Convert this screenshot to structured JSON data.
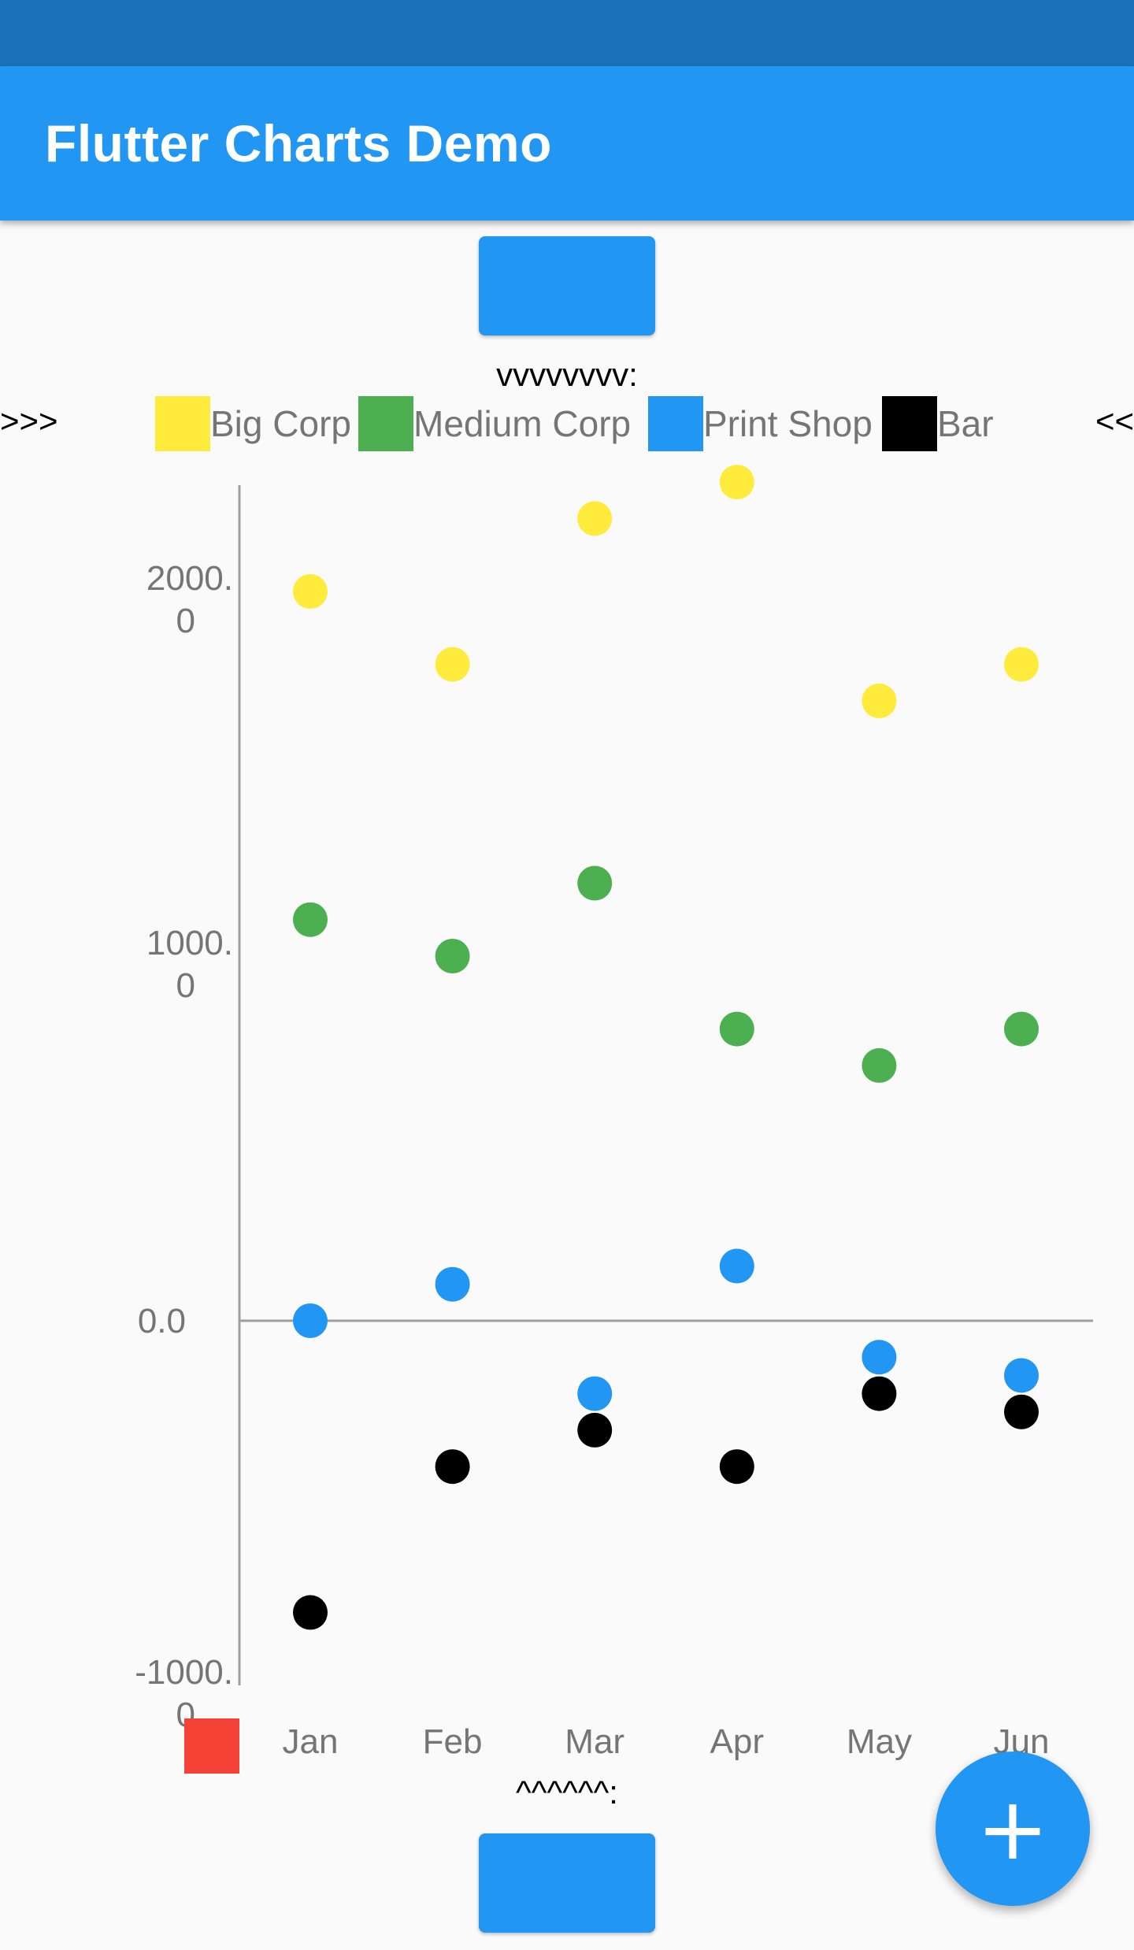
{
  "app": {
    "title": "Flutter Charts Demo"
  },
  "legend": {
    "title": "vvvvvvvv:",
    "arrow_left": ">>>",
    "arrow_right": "<<",
    "items": [
      {
        "label": "Big Corp",
        "color": "#ffeb3b"
      },
      {
        "label": "Medium Corp",
        "color": "#4caf50"
      },
      {
        "label": "Print Shop",
        "color": "#2196f3"
      },
      {
        "label": "Bar",
        "color": "#000000"
      }
    ]
  },
  "bottom_label": "^^^^^^:",
  "fab": {
    "icon": "plus-icon",
    "symbol": "+"
  },
  "chart_data": {
    "type": "scatter",
    "categories": [
      "Jan",
      "Feb",
      "Mar",
      "Apr",
      "May",
      "Jun"
    ],
    "ylim": [
      -1000,
      2300
    ],
    "yticks": [
      "2000.0",
      "1000.0",
      "0.0",
      "-1000.0"
    ],
    "series": [
      {
        "name": "Big Corp",
        "color": "#ffeb3b",
        "values": [
          2000,
          1800,
          2200,
          2300,
          1700,
          1800
        ]
      },
      {
        "name": "Medium Corp",
        "color": "#4caf50",
        "values": [
          1100,
          1000,
          1200,
          800,
          700,
          800
        ]
      },
      {
        "name": "Print Shop",
        "color": "#2196f3",
        "values": [
          0,
          100,
          -200,
          150,
          -100,
          -150
        ]
      },
      {
        "name": "Bar",
        "color": "#000000",
        "values": [
          -800,
          -400,
          -300,
          -400,
          -200,
          -250
        ]
      }
    ]
  }
}
